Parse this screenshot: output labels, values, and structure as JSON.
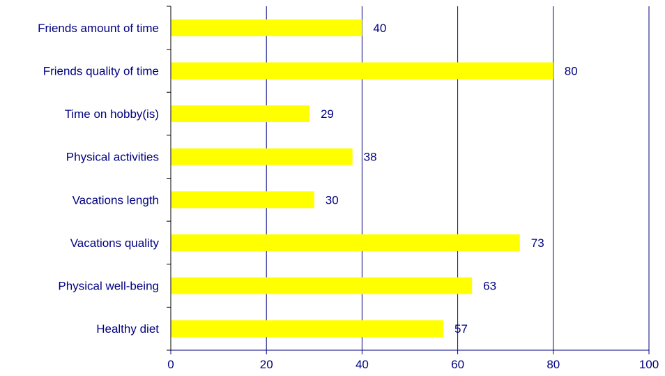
{
  "chart_data": {
    "type": "bar",
    "orientation": "horizontal",
    "categories": [
      "Friends amount of time",
      "Friends quality of time",
      "Time on hobby(is)",
      "Physical activities",
      "Vacations length",
      "Vacations quality",
      "Physical well-being",
      "Healthy diet"
    ],
    "values": [
      40,
      80,
      29,
      38,
      30,
      73,
      63,
      57
    ],
    "data_labels": [
      "40",
      "80",
      "29",
      "38",
      "30",
      "73",
      "63",
      "57"
    ],
    "x_ticks": [
      0,
      20,
      40,
      60,
      80,
      100
    ],
    "x_tick_labels": [
      "0",
      "20",
      "40",
      "60",
      "80",
      "100"
    ],
    "xlim": [
      0,
      100
    ],
    "title": "",
    "xlabel": "",
    "ylabel": "",
    "grid": "vertical",
    "legend": "none",
    "colors": {
      "bar": "#ffff00",
      "text": "#000080",
      "gridline": "#000080",
      "axis": "#000000"
    }
  }
}
